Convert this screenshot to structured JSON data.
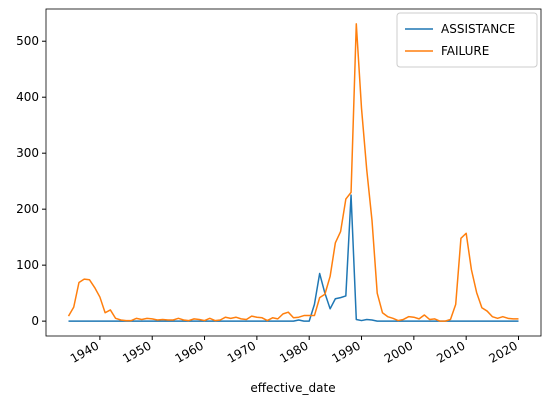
{
  "chart_data": {
    "type": "line",
    "x_label": "effective_date",
    "x": [
      1934,
      1935,
      1936,
      1937,
      1938,
      1939,
      1940,
      1941,
      1942,
      1943,
      1944,
      1945,
      1946,
      1947,
      1948,
      1949,
      1950,
      1951,
      1952,
      1953,
      1954,
      1955,
      1956,
      1957,
      1958,
      1959,
      1960,
      1961,
      1962,
      1963,
      1964,
      1965,
      1966,
      1967,
      1968,
      1969,
      1970,
      1971,
      1972,
      1973,
      1974,
      1975,
      1976,
      1977,
      1978,
      1979,
      1980,
      1981,
      1982,
      1983,
      1984,
      1985,
      1986,
      1987,
      1988,
      1989,
      1990,
      1991,
      1992,
      1993,
      1994,
      1995,
      1996,
      1997,
      1998,
      1999,
      2000,
      2001,
      2002,
      2003,
      2004,
      2005,
      2006,
      2007,
      2008,
      2009,
      2010,
      2011,
      2012,
      2013,
      2014,
      2015,
      2016,
      2017,
      2018,
      2019,
      2020
    ],
    "series": [
      {
        "name": "ASSISTANCE",
        "color": "#1f77b4",
        "values": [
          0,
          0,
          0,
          0,
          0,
          0,
          0,
          0,
          0,
          0,
          0,
          0,
          0,
          0,
          0,
          0,
          0,
          0,
          0,
          0,
          0,
          0,
          0,
          0,
          0,
          0,
          0,
          0,
          0,
          0,
          0,
          0,
          0,
          0,
          0,
          0,
          0,
          0,
          0,
          0,
          0,
          0,
          0,
          0,
          2,
          0,
          0,
          30,
          85,
          50,
          22,
          40,
          42,
          45,
          225,
          3,
          1,
          3,
          2,
          0,
          0,
          0,
          0,
          0,
          0,
          0,
          0,
          0,
          0,
          0,
          0,
          0,
          0,
          0,
          0,
          0,
          0,
          0,
          0,
          0,
          0,
          0,
          0,
          0,
          0,
          0,
          0
        ]
      },
      {
        "name": "FAILURE",
        "color": "#ff7f0e",
        "values": [
          9,
          25,
          69,
          75,
          74,
          60,
          43,
          15,
          20,
          5,
          2,
          1,
          1,
          5,
          3,
          5,
          4,
          2,
          3,
          2,
          2,
          5,
          2,
          1,
          4,
          3,
          1,
          5,
          1,
          2,
          7,
          5,
          7,
          4,
          3,
          9,
          7,
          6,
          1,
          6,
          4,
          13,
          16,
          6,
          7,
          10,
          10,
          10,
          42,
          48,
          80,
          140,
          160,
          218,
          230,
          531,
          380,
          270,
          180,
          50,
          15,
          8,
          5,
          1,
          3,
          8,
          7,
          4,
          11,
          3,
          4,
          0,
          0,
          3,
          30,
          148,
          157,
          92,
          51,
          24,
          18,
          8,
          5,
          8,
          5,
          4,
          4
        ]
      }
    ],
    "xlim": [
      1929.7,
      2024.3
    ],
    "ylim": [
      -26.55,
      557.55
    ],
    "xticks": [
      1940,
      1950,
      1960,
      1970,
      1980,
      1990,
      2000,
      2010,
      2020
    ],
    "yticks": [
      0,
      100,
      200,
      300,
      400,
      500
    ],
    "legend": "upper right",
    "grid": false
  }
}
